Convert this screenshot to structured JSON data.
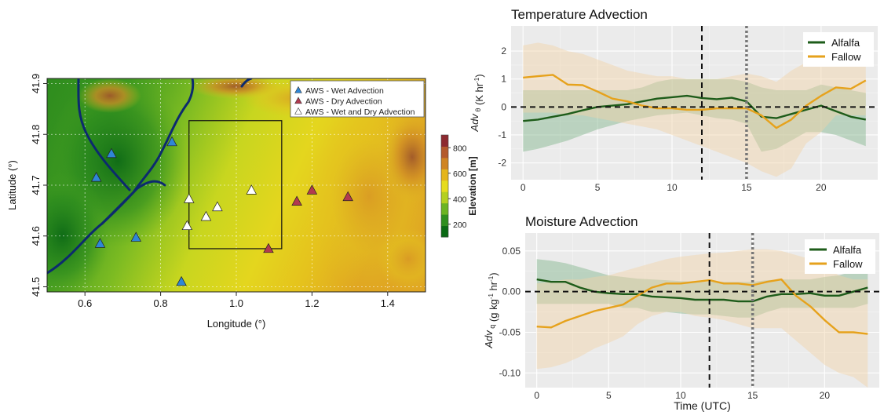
{
  "map": {
    "xlabel": "Longitude (°)",
    "ylabel": "Latitude (°)",
    "xticks": [
      "0.6",
      "0.8",
      "1.0",
      "1.2",
      "1.4"
    ],
    "xtick_vals": [
      0.6,
      0.8,
      1.0,
      1.2,
      1.4
    ],
    "yticks": [
      "41.5",
      "41.6",
      "41.7",
      "41.8",
      "41.9"
    ],
    "ytick_vals": [
      41.5,
      41.6,
      41.7,
      41.8,
      41.9
    ],
    "xlim": [
      0.5,
      1.5
    ],
    "ylim": [
      41.49,
      41.91
    ],
    "colorbar": {
      "label": "Elevation [m]",
      "ticks": [
        "200",
        "400",
        "600",
        "800"
      ],
      "tick_vals": [
        200,
        400,
        600,
        800
      ],
      "range": [
        100,
        900
      ],
      "colors": [
        "#0a6a14",
        "#2f8f1f",
        "#6cb423",
        "#b5d020",
        "#e6dc1e",
        "#e4b51c",
        "#cf8423",
        "#b45a2c",
        "#8d2a30"
      ]
    },
    "legend": [
      {
        "label": "AWS - Wet Advection",
        "color": "#2f86d6"
      },
      {
        "label": "AWS - Dry Advection",
        "color": "#b23a4f"
      },
      {
        "label": "AWS - Wet and Dry Advection",
        "color": "#ffffff"
      }
    ],
    "stations": {
      "wet": [
        [
          0.63,
          41.715
        ],
        [
          0.67,
          41.762
        ],
        [
          0.83,
          41.785
        ],
        [
          0.735,
          41.597
        ],
        [
          0.64,
          41.585
        ],
        [
          0.855,
          41.51
        ]
      ],
      "dry": [
        [
          1.085,
          41.575
        ],
        [
          1.16,
          41.668
        ],
        [
          1.2,
          41.69
        ],
        [
          1.295,
          41.677
        ]
      ],
      "both": [
        [
          0.875,
          41.673
        ],
        [
          0.87,
          41.62
        ],
        [
          0.92,
          41.638
        ],
        [
          0.95,
          41.657
        ],
        [
          1.04,
          41.69
        ]
      ]
    },
    "domain_box": {
      "lon": [
        0.875,
        1.12
      ],
      "lat": [
        41.575,
        41.827
      ]
    }
  },
  "chart_data": [
    {
      "type": "line",
      "title": "Temperature Advection",
      "ylabel_parts": [
        "Adv",
        "θ",
        " (K hr",
        "-1",
        ")"
      ],
      "x": [
        0,
        1,
        2,
        3,
        4,
        5,
        6,
        7,
        8,
        9,
        10,
        11,
        12,
        13,
        14,
        15,
        16,
        17,
        18,
        19,
        20,
        21,
        22,
        23
      ],
      "xticks": [
        "0",
        "5",
        "10",
        "15",
        "20"
      ],
      "xtick_vals": [
        0,
        5,
        10,
        15,
        20
      ],
      "yticks": [
        "-2",
        "-1",
        "0",
        "1",
        "2"
      ],
      "ytick_vals": [
        -2,
        -1,
        0,
        1,
        2
      ],
      "xlim": [
        -0.8,
        23.8
      ],
      "ylim": [
        -2.6,
        2.9
      ],
      "vlines": [
        {
          "x": 12,
          "style": "dash",
          "color": "#111111"
        },
        {
          "x": 15,
          "style": "dot",
          "color": "#777777"
        }
      ],
      "hline": 0,
      "series": [
        {
          "name": "Alfalfa",
          "color": "#1e5c1a",
          "fill": "#7fb389",
          "values": [
            -0.5,
            -0.45,
            -0.35,
            -0.25,
            -0.12,
            0.0,
            0.05,
            0.1,
            0.2,
            0.3,
            0.35,
            0.4,
            0.32,
            0.28,
            0.33,
            0.2,
            -0.35,
            -0.4,
            -0.25,
            -0.1,
            0.05,
            -0.15,
            -0.35,
            -0.45
          ],
          "low": [
            -1.6,
            -1.5,
            -1.35,
            -1.2,
            -1.0,
            -0.8,
            -0.65,
            -0.5,
            -0.4,
            -0.3,
            -0.25,
            -0.2,
            -0.3,
            -0.4,
            -0.45,
            -0.6,
            -1.6,
            -1.5,
            -1.2,
            -0.9,
            -0.9,
            -1.0,
            -1.2,
            -1.4
          ],
          "high": [
            0.6,
            0.6,
            0.6,
            0.6,
            0.6,
            0.6,
            0.6,
            0.6,
            0.7,
            0.9,
            1.0,
            1.0,
            1.0,
            1.0,
            1.0,
            0.9,
            0.7,
            0.6,
            0.6,
            0.6,
            0.8,
            0.7,
            0.6,
            0.5
          ]
        },
        {
          "name": "Fallow",
          "color": "#e6a21c",
          "fill": "#f2d3a6",
          "values": [
            1.05,
            1.1,
            1.15,
            0.8,
            0.78,
            0.55,
            0.3,
            0.2,
            0.05,
            -0.05,
            -0.05,
            -0.1,
            -0.1,
            -0.05,
            -0.05,
            -0.05,
            -0.3,
            -0.75,
            -0.45,
            0.05,
            0.4,
            0.7,
            0.65,
            0.95
          ],
          "low": [
            -0.2,
            -0.2,
            -0.2,
            -0.3,
            -0.3,
            -0.4,
            -0.5,
            -0.6,
            -0.7,
            -0.8,
            -1.0,
            -1.2,
            -1.4,
            -1.6,
            -1.8,
            -2.0,
            -2.3,
            -2.5,
            -2.2,
            -1.3,
            -0.9,
            -0.3,
            -0.3,
            -0.3
          ],
          "high": [
            2.2,
            2.3,
            2.2,
            2.0,
            1.9,
            1.7,
            1.5,
            1.3,
            1.2,
            1.1,
            1.1,
            1.0,
            1.0,
            1.0,
            1.1,
            1.2,
            1.1,
            0.9,
            1.3,
            1.6,
            1.9,
            2.2,
            2.2,
            2.4
          ]
        }
      ]
    },
    {
      "type": "line",
      "title": "Moisture Advection",
      "xlabel": "Time (UTC)",
      "ylabel_parts": [
        "Adv",
        "q",
        " (g kg",
        "-1",
        " hr",
        "-1",
        ")"
      ],
      "x": [
        0,
        1,
        2,
        3,
        4,
        5,
        6,
        7,
        8,
        9,
        10,
        11,
        12,
        13,
        14,
        15,
        16,
        17,
        18,
        19,
        20,
        21,
        22,
        23
      ],
      "xticks": [
        "0",
        "5",
        "10",
        "15",
        "20"
      ],
      "xtick_vals": [
        0,
        5,
        10,
        15,
        20
      ],
      "yticks": [
        "-0.10",
        "-0.05",
        "0.00",
        "0.05"
      ],
      "ytick_vals": [
        -0.1,
        -0.05,
        0.0,
        0.05
      ],
      "xlim": [
        -0.8,
        23.8
      ],
      "ylim": [
        -0.118,
        0.072
      ],
      "vlines": [
        {
          "x": 12,
          "style": "dash",
          "color": "#111111"
        },
        {
          "x": 15,
          "style": "dot",
          "color": "#777777"
        }
      ],
      "hline": 0,
      "series": [
        {
          "name": "Alfalfa",
          "color": "#1e5c1a",
          "fill": "#7fb389",
          "values": [
            0.015,
            0.012,
            0.012,
            0.005,
            0.0,
            -0.002,
            -0.003,
            -0.003,
            -0.006,
            -0.007,
            -0.008,
            -0.01,
            -0.01,
            -0.01,
            -0.012,
            -0.012,
            -0.006,
            -0.003,
            -0.003,
            -0.002,
            -0.005,
            -0.005,
            0.0,
            0.005
          ],
          "low": [
            -0.015,
            -0.015,
            -0.015,
            -0.015,
            -0.015,
            -0.015,
            -0.02,
            -0.02,
            -0.025,
            -0.025,
            -0.027,
            -0.028,
            -0.028,
            -0.03,
            -0.032,
            -0.032,
            -0.025,
            -0.02,
            -0.02,
            -0.02,
            -0.02,
            -0.02,
            -0.02,
            -0.015
          ],
          "high": [
            0.04,
            0.038,
            0.035,
            0.03,
            0.025,
            0.02,
            0.018,
            0.016,
            0.015,
            0.014,
            0.013,
            0.012,
            0.012,
            0.012,
            0.012,
            0.012,
            0.014,
            0.015,
            0.015,
            0.015,
            0.018,
            0.02,
            0.025,
            0.025
          ]
        },
        {
          "name": "Fallow",
          "color": "#e6a21c",
          "fill": "#f2d3a6",
          "values": [
            -0.043,
            -0.044,
            -0.036,
            -0.03,
            -0.024,
            -0.02,
            -0.016,
            -0.005,
            0.005,
            0.01,
            0.01,
            0.012,
            0.014,
            0.01,
            0.01,
            0.008,
            0.012,
            0.015,
            -0.005,
            -0.018,
            -0.035,
            -0.05,
            -0.05,
            -0.052
          ],
          "low": [
            -0.095,
            -0.093,
            -0.088,
            -0.08,
            -0.07,
            -0.063,
            -0.055,
            -0.04,
            -0.03,
            -0.025,
            -0.025,
            -0.03,
            -0.032,
            -0.035,
            -0.04,
            -0.045,
            -0.045,
            -0.045,
            -0.06,
            -0.075,
            -0.09,
            -0.1,
            -0.105,
            -0.118
          ],
          "high": [
            0.01,
            0.012,
            0.015,
            0.015,
            0.018,
            0.02,
            0.025,
            0.03,
            0.035,
            0.04,
            0.043,
            0.045,
            0.047,
            0.048,
            0.05,
            0.052,
            0.052,
            0.05,
            0.045,
            0.04,
            0.03,
            0.02,
            0.015,
            0.015
          ]
        }
      ]
    }
  ]
}
